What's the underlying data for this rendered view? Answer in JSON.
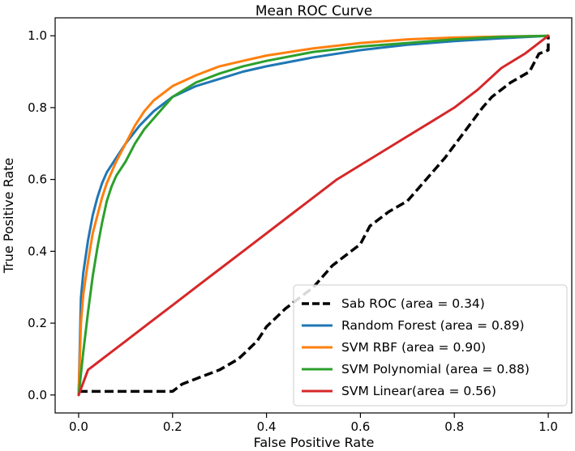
{
  "chart_data": {
    "type": "line",
    "title": "Mean ROC Curve",
    "xlabel": "False Positive Rate",
    "ylabel": "True Positive Rate",
    "xlim": [
      -0.05,
      1.05
    ],
    "ylim": [
      -0.05,
      1.05
    ],
    "xticks": [
      "0.0",
      "0.2",
      "0.4",
      "0.6",
      "0.8",
      "1.0"
    ],
    "yticks": [
      "0.0",
      "0.2",
      "0.4",
      "0.6",
      "0.8",
      "1.0"
    ],
    "grid": false,
    "legend_position": "lower-right",
    "series": [
      {
        "name": "Sab ROC (area = 0.34)",
        "color": "#000000",
        "dashed": true,
        "x": [
          0.0,
          0.2,
          0.22,
          0.26,
          0.3,
          0.34,
          0.38,
          0.4,
          0.44,
          0.48,
          0.5,
          0.54,
          0.6,
          0.62,
          0.66,
          0.7,
          0.74,
          0.78,
          0.82,
          0.86,
          0.88,
          0.92,
          0.96,
          0.98,
          1.0,
          1.0
        ],
        "y": [
          0.01,
          0.01,
          0.03,
          0.05,
          0.07,
          0.1,
          0.15,
          0.19,
          0.24,
          0.28,
          0.3,
          0.36,
          0.42,
          0.47,
          0.51,
          0.54,
          0.6,
          0.66,
          0.73,
          0.8,
          0.83,
          0.87,
          0.9,
          0.95,
          0.96,
          1.0
        ]
      },
      {
        "name": "Random Forest (area = 0.89)",
        "color": "#1f77b4",
        "dashed": false,
        "x": [
          0.0,
          0.005,
          0.01,
          0.02,
          0.03,
          0.04,
          0.05,
          0.06,
          0.08,
          0.1,
          0.13,
          0.16,
          0.2,
          0.25,
          0.3,
          0.35,
          0.4,
          0.5,
          0.6,
          0.7,
          0.8,
          0.9,
          1.0
        ],
        "y": [
          0.0,
          0.27,
          0.34,
          0.43,
          0.5,
          0.55,
          0.59,
          0.62,
          0.66,
          0.7,
          0.75,
          0.79,
          0.83,
          0.86,
          0.88,
          0.9,
          0.915,
          0.94,
          0.96,
          0.975,
          0.985,
          0.993,
          1.0
        ]
      },
      {
        "name": "SVM RBF (area = 0.90)",
        "color": "#ff7f0e",
        "dashed": false,
        "x": [
          0.0,
          0.005,
          0.01,
          0.02,
          0.03,
          0.04,
          0.05,
          0.06,
          0.08,
          0.1,
          0.12,
          0.14,
          0.16,
          0.2,
          0.25,
          0.3,
          0.35,
          0.4,
          0.5,
          0.6,
          0.7,
          0.8,
          0.9,
          1.0
        ],
        "y": [
          0.0,
          0.2,
          0.28,
          0.37,
          0.45,
          0.5,
          0.55,
          0.59,
          0.65,
          0.7,
          0.75,
          0.79,
          0.82,
          0.86,
          0.89,
          0.915,
          0.93,
          0.945,
          0.965,
          0.98,
          0.99,
          0.995,
          0.998,
          1.0
        ]
      },
      {
        "name": "SVM Polynomial (area = 0.88)",
        "color": "#2ca02c",
        "dashed": false,
        "x": [
          0.0,
          0.01,
          0.02,
          0.03,
          0.04,
          0.05,
          0.06,
          0.07,
          0.08,
          0.1,
          0.12,
          0.14,
          0.16,
          0.18,
          0.2,
          0.25,
          0.3,
          0.35,
          0.4,
          0.5,
          0.6,
          0.7,
          0.8,
          0.9,
          1.0
        ],
        "y": [
          0.0,
          0.12,
          0.23,
          0.33,
          0.41,
          0.48,
          0.54,
          0.58,
          0.61,
          0.65,
          0.7,
          0.74,
          0.77,
          0.8,
          0.83,
          0.87,
          0.895,
          0.915,
          0.93,
          0.955,
          0.97,
          0.98,
          0.99,
          0.997,
          1.0
        ]
      },
      {
        "name": "SVM Linear(area = 0.56)",
        "color": "#d62728",
        "dashed": false,
        "x": [
          0.0,
          0.02,
          0.05,
          0.1,
          0.15,
          0.2,
          0.25,
          0.3,
          0.35,
          0.4,
          0.45,
          0.5,
          0.55,
          0.6,
          0.65,
          0.7,
          0.75,
          0.8,
          0.85,
          0.9,
          0.95,
          1.0
        ],
        "y": [
          0.0,
          0.07,
          0.1,
          0.15,
          0.2,
          0.25,
          0.3,
          0.35,
          0.4,
          0.45,
          0.5,
          0.55,
          0.6,
          0.64,
          0.68,
          0.72,
          0.76,
          0.8,
          0.85,
          0.91,
          0.95,
          1.0
        ]
      }
    ]
  }
}
